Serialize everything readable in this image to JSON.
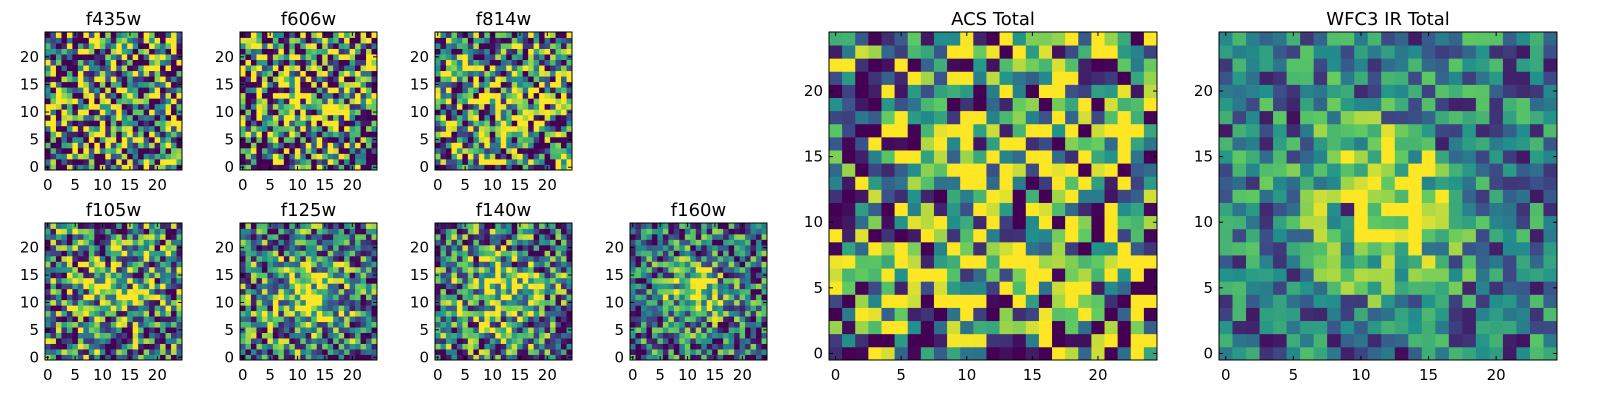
{
  "chart_data": [
    {
      "type": "heatmap",
      "title": "f435w",
      "xticks": [
        "0",
        "5",
        "10",
        "15",
        "20"
      ],
      "yticks": [
        "0",
        "5",
        "10",
        "15",
        "20"
      ],
      "xlim": [
        0,
        25
      ],
      "ylim": [
        0,
        25
      ],
      "grid": false,
      "seed": 11,
      "sigma": 0.0,
      "peak": 0.15,
      "noise": 0.85,
      "base": 0.45
    },
    {
      "type": "heatmap",
      "title": "f606w",
      "xticks": [
        "0",
        "5",
        "10",
        "15",
        "20"
      ],
      "yticks": [
        "0",
        "5",
        "10",
        "15",
        "20"
      ],
      "xlim": [
        0,
        25
      ],
      "ylim": [
        0,
        25
      ],
      "grid": false,
      "seed": 23,
      "sigma": 4.0,
      "peak": 0.25,
      "noise": 0.8,
      "base": 0.45
    },
    {
      "type": "heatmap",
      "title": "f814w",
      "xticks": [
        "0",
        "5",
        "10",
        "15",
        "20"
      ],
      "yticks": [
        "0",
        "5",
        "10",
        "15",
        "20"
      ],
      "xlim": [
        0,
        25
      ],
      "ylim": [
        0,
        25
      ],
      "grid": false,
      "seed": 37,
      "sigma": 4.0,
      "peak": 0.3,
      "noise": 0.75,
      "base": 0.45
    },
    {
      "type": "heatmap",
      "title": "f105w",
      "xticks": [
        "0",
        "5",
        "10",
        "15",
        "20"
      ],
      "yticks": [
        "0",
        "5",
        "10",
        "15",
        "20"
      ],
      "xlim": [
        0,
        25
      ],
      "ylim": [
        0,
        25
      ],
      "grid": false,
      "seed": 41,
      "sigma": 4.5,
      "peak": 0.4,
      "noise": 0.6,
      "base": 0.4
    },
    {
      "type": "heatmap",
      "title": "f125w",
      "xticks": [
        "0",
        "5",
        "10",
        "15",
        "20"
      ],
      "yticks": [
        "0",
        "5",
        "10",
        "15",
        "20"
      ],
      "xlim": [
        0,
        25
      ],
      "ylim": [
        0,
        25
      ],
      "grid": false,
      "seed": 53,
      "sigma": 4.5,
      "peak": 0.5,
      "noise": 0.55,
      "base": 0.4
    },
    {
      "type": "heatmap",
      "title": "f140w",
      "xticks": [
        "0",
        "5",
        "10",
        "15",
        "20"
      ],
      "yticks": [
        "0",
        "5",
        "10",
        "15",
        "20"
      ],
      "xlim": [
        0,
        25
      ],
      "ylim": [
        0,
        25
      ],
      "grid": false,
      "seed": 67,
      "sigma": 5.0,
      "peak": 0.45,
      "noise": 0.55,
      "base": 0.4
    },
    {
      "type": "heatmap",
      "title": "f160w",
      "xticks": [
        "0",
        "5",
        "10",
        "15",
        "20"
      ],
      "yticks": [
        "0",
        "5",
        "10",
        "15",
        "20"
      ],
      "xlim": [
        0,
        25
      ],
      "ylim": [
        0,
        25
      ],
      "grid": false,
      "seed": 79,
      "sigma": 3.5,
      "peak": 0.6,
      "noise": 0.5,
      "base": 0.35
    },
    {
      "type": "heatmap",
      "title": "ACS Total",
      "xticks": [
        "0",
        "5",
        "10",
        "15",
        "20"
      ],
      "yticks": [
        "0",
        "5",
        "10",
        "15",
        "20"
      ],
      "xlim": [
        0,
        25
      ],
      "ylim": [
        0,
        25
      ],
      "grid": false,
      "seed": 97,
      "sigma": 5.0,
      "peak": 0.15,
      "noise": 0.7,
      "base": 0.5
    },
    {
      "type": "heatmap",
      "title": "WFC3 IR Total",
      "xticks": [
        "0",
        "5",
        "10",
        "15",
        "20"
      ],
      "yticks": [
        "0",
        "5",
        "10",
        "15",
        "20"
      ],
      "xlim": [
        0,
        25
      ],
      "ylim": [
        0,
        25
      ],
      "grid": false,
      "seed": 131,
      "sigma": 4.0,
      "peak": 0.6,
      "noise": 0.35,
      "base": 0.4
    }
  ],
  "colormap": [
    "#440154",
    "#3b528b",
    "#21918c",
    "#5ec962",
    "#fde725"
  ],
  "nx": 25,
  "ny": 25
}
